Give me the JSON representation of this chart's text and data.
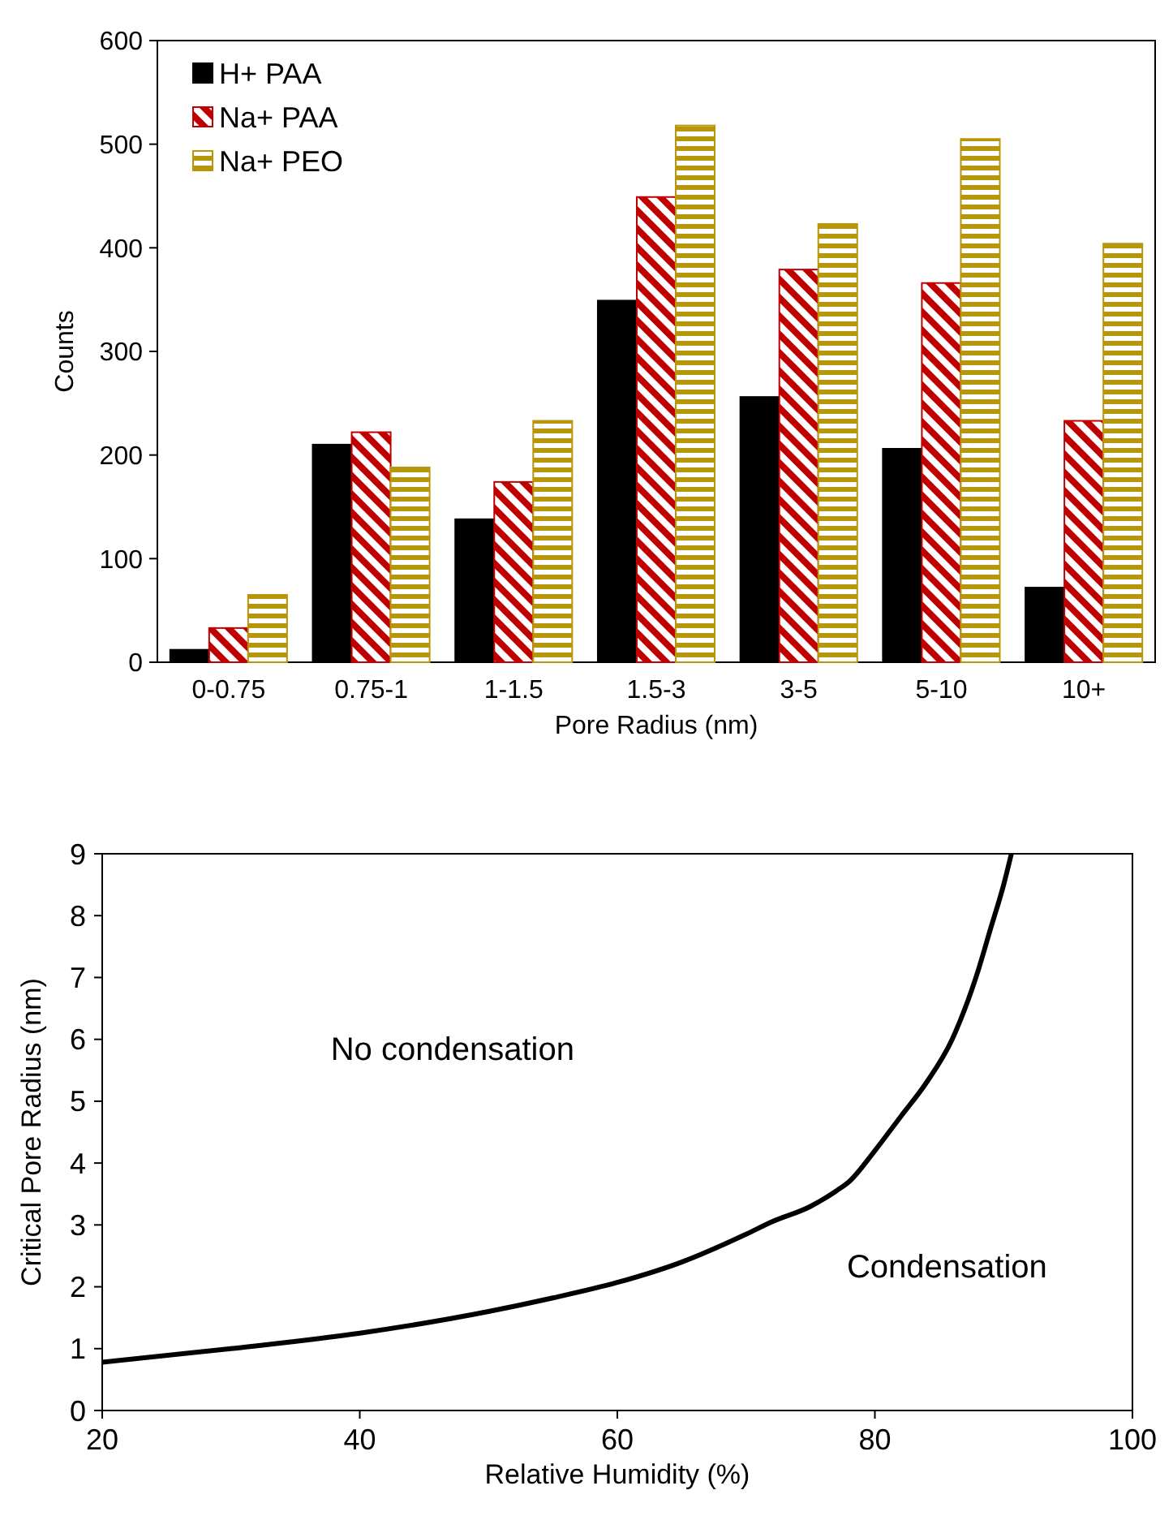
{
  "chart_data": [
    {
      "type": "bar",
      "xlabel": "Pore Radius (nm)",
      "ylabel": "Counts",
      "categories": [
        "0-0.75",
        "0.75-1",
        "1-1.5",
        "1.5-3",
        "3-5",
        "5-10",
        "10+"
      ],
      "ylim": [
        0,
        600
      ],
      "yticks": [
        0,
        100,
        200,
        300,
        400,
        500,
        600
      ],
      "legend": "top left",
      "series": [
        {
          "name": "H+ PAA",
          "color": "#000000",
          "values": [
            12,
            210,
            138,
            349,
            256,
            206,
            72
          ]
        },
        {
          "name": "Na+ PAA",
          "color": "#c00000",
          "values": [
            33,
            222,
            174,
            449,
            379,
            366,
            233
          ]
        },
        {
          "name": "Na+ PEO",
          "color": "#b8960c",
          "values": [
            65,
            188,
            233,
            518,
            423,
            505,
            404
          ]
        }
      ]
    },
    {
      "type": "line",
      "xlabel": "Relative Humidity (%)",
      "ylabel": "Critical Pore Radius (nm)",
      "xlim": [
        20,
        100
      ],
      "xticks": [
        20,
        40,
        60,
        80,
        100
      ],
      "ylim": [
        0,
        9
      ],
      "yticks": [
        0,
        1,
        2,
        3,
        4,
        5,
        6,
        7,
        8,
        9
      ],
      "annotations": [
        "No condensation",
        "Condensation"
      ],
      "series": [
        {
          "color": "#000000",
          "x": [
            20,
            30,
            40,
            50,
            55,
            60,
            65,
            70,
            72,
            75,
            77,
            78,
            80,
            82,
            84,
            86,
            87,
            88,
            89,
            90,
            90.6
          ],
          "values": [
            0.78,
            1.0,
            1.25,
            1.6,
            1.82,
            2.07,
            2.4,
            2.85,
            3.05,
            3.3,
            3.55,
            3.7,
            4.2,
            4.75,
            5.3,
            6.0,
            6.5,
            7.1,
            7.8,
            8.5,
            9
          ]
        }
      ]
    }
  ]
}
